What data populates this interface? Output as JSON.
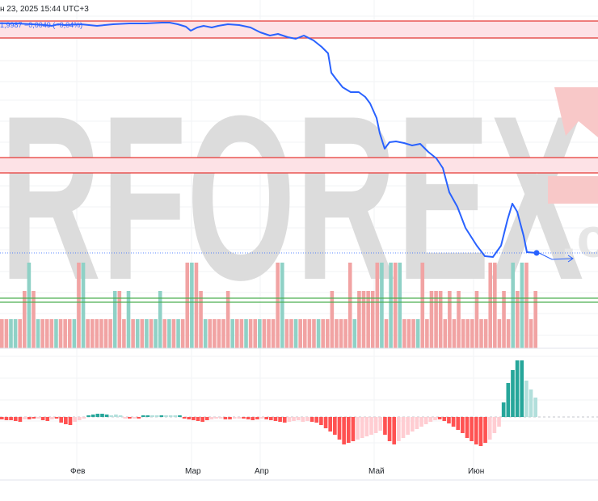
{
  "header": {
    "timestamp": "н 23, 2025 15:44 UTC+3",
    "legend": "1,9987 −0,0049 (−0,04%)"
  },
  "watermark": {
    "text": "RFOREX",
    "tail": ".c",
    "color": "#dcdcdc",
    "accent_color": "#f8c8c8"
  },
  "colors": {
    "price_line": "#2962ff",
    "zone_fill": "#fde2e6",
    "zone_border": "#e53935",
    "green_line": "#4caf50",
    "volume_up": "#8fd1c6",
    "volume_down": "#f1a3a3",
    "macd_strong_down": "#ff5252",
    "macd_weak_down": "#ffcdd2",
    "macd_strong_up": "#26a69a",
    "macd_weak_up": "#b2dfdb"
  },
  "chart_data": {
    "type": "line",
    "x_axis_labels": [
      "Фев",
      "Мар",
      "Апр",
      "Май",
      "Июн"
    ],
    "price_series": {
      "points": [
        [
          0,
          28.8
        ],
        [
          20,
          29
        ],
        [
          40,
          30
        ],
        [
          56,
          31
        ],
        [
          64,
          32
        ],
        [
          72,
          30
        ],
        [
          80,
          31
        ],
        [
          100,
          30
        ],
        [
          120,
          32
        ],
        [
          140,
          30
        ],
        [
          160,
          29
        ],
        [
          180,
          29
        ],
        [
          200,
          28
        ],
        [
          210,
          28
        ],
        [
          220,
          30
        ],
        [
          230,
          33
        ],
        [
          236,
          38
        ],
        [
          244,
          34
        ],
        [
          252,
          32
        ],
        [
          262,
          34
        ],
        [
          270,
          32
        ],
        [
          282,
          30
        ],
        [
          296,
          31
        ],
        [
          310,
          34
        ],
        [
          322,
          40
        ],
        [
          334,
          44
        ],
        [
          344,
          42
        ],
        [
          356,
          46
        ],
        [
          366,
          48
        ],
        [
          376,
          44
        ],
        [
          388,
          50
        ],
        [
          398,
          58
        ],
        [
          406,
          66
        ],
        [
          410,
          90
        ],
        [
          416,
          98
        ],
        [
          424,
          108
        ],
        [
          434,
          114
        ],
        [
          444,
          114
        ],
        [
          452,
          120
        ],
        [
          458,
          128
        ],
        [
          466,
          146
        ],
        [
          470,
          165
        ],
        [
          476,
          184
        ],
        [
          482,
          176
        ],
        [
          490,
          175
        ],
        [
          500,
          177
        ],
        [
          510,
          180
        ],
        [
          520,
          178
        ],
        [
          530,
          188
        ],
        [
          540,
          196
        ],
        [
          548,
          208
        ],
        [
          556,
          238
        ],
        [
          566,
          256
        ],
        [
          576,
          282
        ],
        [
          590,
          304
        ],
        [
          600,
          317
        ],
        [
          610,
          318
        ],
        [
          620,
          304
        ],
        [
          628,
          272
        ],
        [
          634,
          252
        ],
        [
          640,
          262
        ],
        [
          648,
          292
        ],
        [
          652,
          312
        ],
        [
          664,
          313
        ]
      ],
      "last_marker": [
        664,
        313
      ]
    },
    "horizontal_levels": {
      "resistance_zone": [
        26,
        47
      ],
      "support_zone": [
        195,
        214
      ],
      "green_lines": [
        369,
        374
      ],
      "current_price": 313
    },
    "volume_bars": [
      [
        "d",
        395
      ],
      [
        "d",
        395
      ],
      [
        "u",
        395
      ],
      [
        "u",
        395
      ],
      [
        "d",
        395
      ],
      [
        "d",
        360
      ],
      [
        "u",
        325
      ],
      [
        "d",
        360
      ],
      [
        "u",
        395
      ],
      [
        "d",
        395
      ],
      [
        "d",
        395
      ],
      [
        "d",
        395
      ],
      [
        "u",
        395
      ],
      [
        "d",
        395
      ],
      [
        "d",
        395
      ],
      [
        "d",
        395
      ],
      [
        "u",
        395
      ],
      [
        "d",
        325
      ],
      [
        "u",
        325
      ],
      [
        "d",
        395
      ],
      [
        "d",
        395
      ],
      [
        "d",
        395
      ],
      [
        "d",
        395
      ],
      [
        "d",
        395
      ],
      [
        "d",
        395
      ],
      [
        "u",
        360
      ],
      [
        "d",
        360
      ],
      [
        "d",
        395
      ],
      [
        "u",
        360
      ],
      [
        "d",
        395
      ],
      [
        "u",
        395
      ],
      [
        "d",
        395
      ],
      [
        "u",
        395
      ],
      [
        "d",
        395
      ],
      [
        "u",
        395
      ],
      [
        "u",
        360
      ],
      [
        "d",
        395
      ],
      [
        "u",
        395
      ],
      [
        "d",
        395
      ],
      [
        "u",
        395
      ],
      [
        "d",
        395
      ],
      [
        "d",
        325
      ],
      [
        "u",
        325
      ],
      [
        "d",
        325
      ],
      [
        "d",
        360
      ],
      [
        "u",
        395
      ],
      [
        "d",
        395
      ],
      [
        "d",
        395
      ],
      [
        "d",
        395
      ],
      [
        "d",
        395
      ],
      [
        "d",
        360
      ],
      [
        "u",
        395
      ],
      [
        "d",
        395
      ],
      [
        "d",
        395
      ],
      [
        "u",
        395
      ],
      [
        "d",
        395
      ],
      [
        "d",
        395
      ],
      [
        "u",
        395
      ],
      [
        "d",
        395
      ],
      [
        "d",
        395
      ],
      [
        "d",
        395
      ],
      [
        "d",
        325
      ],
      [
        "u",
        325
      ],
      [
        "d",
        395
      ],
      [
        "d",
        395
      ],
      [
        "u",
        395
      ],
      [
        "d",
        395
      ],
      [
        "d",
        395
      ],
      [
        "d",
        395
      ],
      [
        "d",
        395
      ],
      [
        "u",
        395
      ],
      [
        "d",
        395
      ],
      [
        "d",
        395
      ],
      [
        "d",
        360
      ],
      [
        "d",
        395
      ],
      [
        "d",
        395
      ],
      [
        "d",
        395
      ],
      [
        "d",
        325
      ],
      [
        "u",
        395
      ],
      [
        "d",
        360
      ],
      [
        "d",
        360
      ],
      [
        "d",
        360
      ],
      [
        "d",
        360
      ],
      [
        "d",
        325
      ],
      [
        "u",
        325
      ],
      [
        "d",
        395
      ],
      [
        "u",
        325
      ],
      [
        "d",
        325
      ],
      [
        "u",
        325
      ],
      [
        "d",
        395
      ],
      [
        "d",
        395
      ],
      [
        "d",
        395
      ],
      [
        "u",
        395
      ],
      [
        "d",
        325
      ],
      [
        "d",
        395
      ],
      [
        "d",
        360
      ],
      [
        "d",
        360
      ],
      [
        "d",
        360
      ],
      [
        "d",
        395
      ],
      [
        "d",
        360
      ],
      [
        "d",
        395
      ],
      [
        "d",
        360
      ],
      [
        "d",
        395
      ],
      [
        "d",
        395
      ],
      [
        "d",
        395
      ],
      [
        "d",
        360
      ],
      [
        "d",
        395
      ],
      [
        "d",
        395
      ],
      [
        "d",
        325
      ],
      [
        "d",
        325
      ],
      [
        "d",
        395
      ],
      [
        "d",
        360
      ],
      [
        "d",
        395
      ],
      [
        "u",
        325
      ],
      [
        "d",
        360
      ],
      [
        "u",
        325
      ],
      [
        "d",
        325
      ],
      [
        "d",
        395
      ],
      [
        "d",
        360
      ]
    ],
    "macd_bars": [
      [
        "d",
        -3
      ],
      [
        "d",
        -4
      ],
      [
        "d",
        -4
      ],
      [
        "d",
        -5
      ],
      [
        "d",
        -6
      ],
      [
        "w",
        -3
      ],
      [
        "d",
        -3
      ],
      [
        "d",
        -2
      ],
      [
        "w",
        -2
      ],
      [
        "d",
        -4
      ],
      [
        "d",
        -5
      ],
      [
        "w",
        -3
      ],
      [
        "d",
        -2
      ],
      [
        "d",
        -7
      ],
      [
        "d",
        -9
      ],
      [
        "d",
        -10
      ],
      [
        "w",
        -6
      ],
      [
        "w",
        -4
      ],
      [
        "w",
        -2
      ],
      [
        "u",
        2
      ],
      [
        "u",
        3
      ],
      [
        "u",
        4
      ],
      [
        "u",
        4
      ],
      [
        "u",
        3
      ],
      [
        "v",
        2
      ],
      [
        "v",
        3
      ],
      [
        "v",
        2
      ],
      [
        "w",
        -2
      ],
      [
        "d",
        -2
      ],
      [
        "w",
        -2
      ],
      [
        "d",
        -2
      ],
      [
        "u",
        2
      ],
      [
        "u",
        2
      ],
      [
        "v",
        2
      ],
      [
        "v",
        2
      ],
      [
        "u",
        2
      ],
      [
        "v",
        2
      ],
      [
        "v",
        2
      ],
      [
        "v",
        2
      ],
      [
        "u",
        2
      ],
      [
        "d",
        -2
      ],
      [
        "d",
        -3
      ],
      [
        "d",
        -4
      ],
      [
        "d",
        -5
      ],
      [
        "d",
        -6
      ],
      [
        "d",
        -4
      ],
      [
        "w",
        -3
      ],
      [
        "w",
        -2
      ],
      [
        "w",
        -2
      ],
      [
        "d",
        -3
      ],
      [
        "d",
        -3
      ],
      [
        "w",
        -2
      ],
      [
        "w",
        -2
      ],
      [
        "d",
        -2
      ],
      [
        "d",
        -3
      ],
      [
        "d",
        -4
      ],
      [
        "d",
        -3
      ],
      [
        "w",
        -2
      ],
      [
        "d",
        -3
      ],
      [
        "d",
        -4
      ],
      [
        "d",
        -5
      ],
      [
        "d",
        -6
      ],
      [
        "d",
        -7
      ],
      [
        "w",
        -6
      ],
      [
        "w",
        -5
      ],
      [
        "w",
        -4
      ],
      [
        "w",
        -6
      ],
      [
        "w",
        -5
      ],
      [
        "d",
        -6
      ],
      [
        "d",
        -7
      ],
      [
        "d",
        -10
      ],
      [
        "d",
        -14
      ],
      [
        "d",
        -18
      ],
      [
        "d",
        -22
      ],
      [
        "d",
        -28
      ],
      [
        "d",
        -34
      ],
      [
        "d",
        -32
      ],
      [
        "d",
        -30
      ],
      [
        "w",
        -28
      ],
      [
        "w",
        -26
      ],
      [
        "w",
        -24
      ],
      [
        "w",
        -22
      ],
      [
        "w",
        -20
      ],
      [
        "w",
        -17
      ],
      [
        "d",
        -22
      ],
      [
        "d",
        -30
      ],
      [
        "d",
        -34
      ],
      [
        "w",
        -30
      ],
      [
        "w",
        -26
      ],
      [
        "w",
        -22
      ],
      [
        "w",
        -18
      ],
      [
        "w",
        -15
      ],
      [
        "w",
        -12
      ],
      [
        "w",
        -9
      ],
      [
        "w",
        -6
      ],
      [
        "w",
        -4
      ],
      [
        "d",
        -3
      ],
      [
        "d",
        -5
      ],
      [
        "d",
        -8
      ],
      [
        "d",
        -12
      ],
      [
        "d",
        -16
      ],
      [
        "d",
        -20
      ],
      [
        "d",
        -26
      ],
      [
        "d",
        -30
      ],
      [
        "d",
        -34
      ],
      [
        "d",
        -36
      ],
      [
        "d",
        -32
      ],
      [
        "w",
        -28
      ],
      [
        "w",
        -20
      ],
      [
        "w",
        -12
      ],
      [
        "u",
        18
      ],
      [
        "u",
        42
      ],
      [
        "u",
        58
      ],
      [
        "u",
        70
      ],
      [
        "u",
        70
      ],
      [
        "v",
        45
      ],
      [
        "v",
        34
      ],
      [
        "v",
        24
      ]
    ]
  }
}
